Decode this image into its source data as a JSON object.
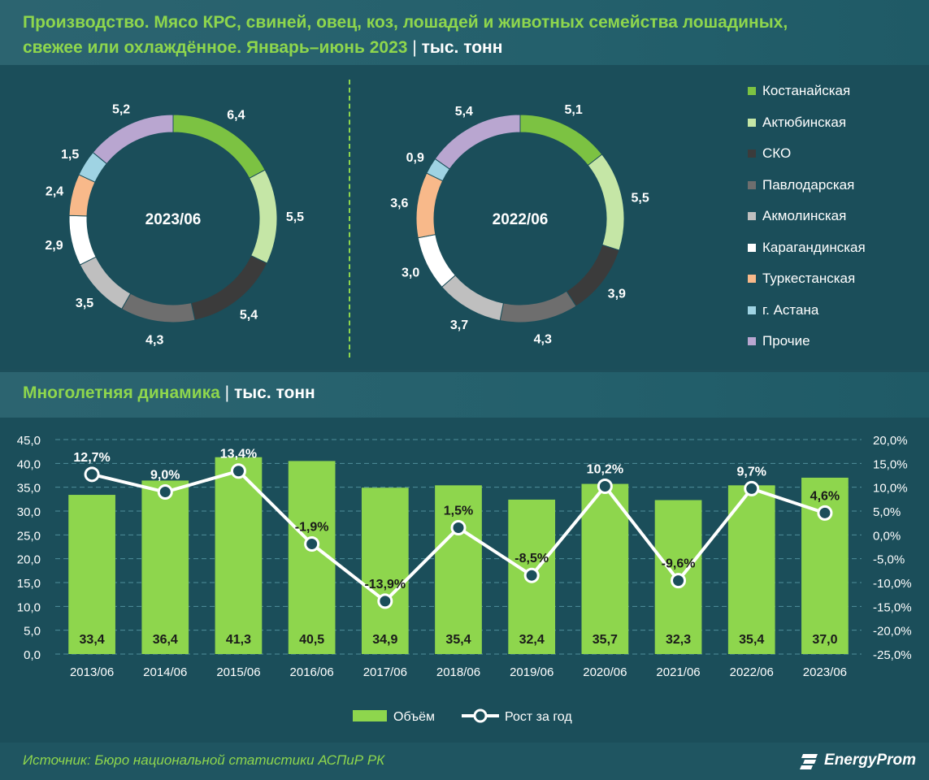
{
  "header": {
    "title_line1": "Производство. Мясо КРС, свиней, овец, коз, лошадей и животных семейства лошадиных,",
    "title_line2": "свежее или охлаждённое. Январь–июнь 2023",
    "separator": "|",
    "unit": "тыс. тонн"
  },
  "colors": {
    "background": "#1d4f5b",
    "accent_green": "#8ed64d",
    "line_white": "#ffffff"
  },
  "pie_legend": [
    {
      "label": "Костанайская",
      "color": "#7cc242"
    },
    {
      "label": "Актюбинская",
      "color": "#c5e6a6"
    },
    {
      "label": "СКО",
      "color": "#3b3b3b"
    },
    {
      "label": "Павлодарская",
      "color": "#6e6e6e"
    },
    {
      "label": "Акмолинская",
      "color": "#bfbfbf"
    },
    {
      "label": "Карагандинская",
      "color": "#ffffff"
    },
    {
      "label": "Туркестанская",
      "color": "#f8b98a"
    },
    {
      "label": "г. Астана",
      "color": "#9fd3e3"
    },
    {
      "label": "Прочие",
      "color": "#b9a6d0"
    }
  ],
  "section2": {
    "title": "Многолетняя динамика",
    "separator": "|",
    "unit": "тыс. тонн"
  },
  "footer": {
    "source": "Источник: Бюро национальной статистики АСПиР РК",
    "logo": "EnergyProm"
  },
  "chart_data": [
    {
      "type": "pie",
      "center_label": "2023/06",
      "categories": [
        "Костанайская",
        "Актюбинская",
        "СКО",
        "Павлодарская",
        "Акмолинская",
        "Карагандинская",
        "Туркестанская",
        "г. Астана",
        "Прочие"
      ],
      "values": [
        6.4,
        5.5,
        5.4,
        4.3,
        3.5,
        2.9,
        2.4,
        1.5,
        5.2
      ],
      "labels": [
        "6,4",
        "5,5",
        "5,4",
        "4,3",
        "3,5",
        "2,9",
        "2,4",
        "1,5",
        "5,2"
      ]
    },
    {
      "type": "pie",
      "center_label": "2022/06",
      "categories": [
        "Костанайская",
        "Актюбинская",
        "СКО",
        "Павлодарская",
        "Акмолинская",
        "Карагандинская",
        "Туркестанская",
        "г. Астана",
        "Прочие"
      ],
      "values": [
        5.1,
        5.5,
        3.9,
        4.3,
        3.7,
        3.0,
        3.6,
        0.9,
        5.4
      ],
      "labels": [
        "5,1",
        "5,5",
        "3,9",
        "4,3",
        "3,7",
        "3,0",
        "3,6",
        "0,9",
        "5,4"
      ]
    },
    {
      "type": "bar",
      "categories": [
        "2013/06",
        "2014/06",
        "2015/06",
        "2016/06",
        "2017/06",
        "2018/06",
        "2019/06",
        "2020/06",
        "2021/06",
        "2022/06",
        "2023/06"
      ],
      "series": [
        {
          "name": "Объём",
          "type": "bar",
          "axis": "left",
          "values": [
            33.4,
            36.4,
            41.3,
            40.5,
            34.9,
            35.4,
            32.4,
            35.7,
            32.3,
            35.4,
            37.0
          ],
          "labels": [
            "33,4",
            "36,4",
            "41,3",
            "40,5",
            "34,9",
            "35,4",
            "32,4",
            "35,7",
            "32,3",
            "35,4",
            "37,0"
          ]
        },
        {
          "name": "Рост за год",
          "type": "line",
          "axis": "right",
          "values": [
            12.7,
            9.0,
            13.4,
            -1.9,
            -13.9,
            1.5,
            -8.5,
            10.2,
            -9.6,
            9.7,
            4.6
          ],
          "labels": [
            "12,7%",
            "9,0%",
            "13,4%",
            "-1,9%",
            "-13,9%",
            "1,5%",
            "-8,5%",
            "10,2%",
            "-9,6%",
            "9,7%",
            "4,6%"
          ]
        }
      ],
      "ylim": [
        0,
        45
      ],
      "y_ticks": [
        "0,0",
        "5,0",
        "10,0",
        "15,0",
        "20,0",
        "25,0",
        "30,0",
        "35,0",
        "40,0",
        "45,0"
      ],
      "y2lim": [
        -25,
        20
      ],
      "y2_ticks": [
        "-25,0%",
        "-20,0%",
        "-15,0%",
        "-10,0%",
        "-5,0%",
        "0,0%",
        "5,0%",
        "10,0%",
        "15,0%",
        "20,0%"
      ],
      "grid": true,
      "legend_position": "bottom"
    }
  ]
}
